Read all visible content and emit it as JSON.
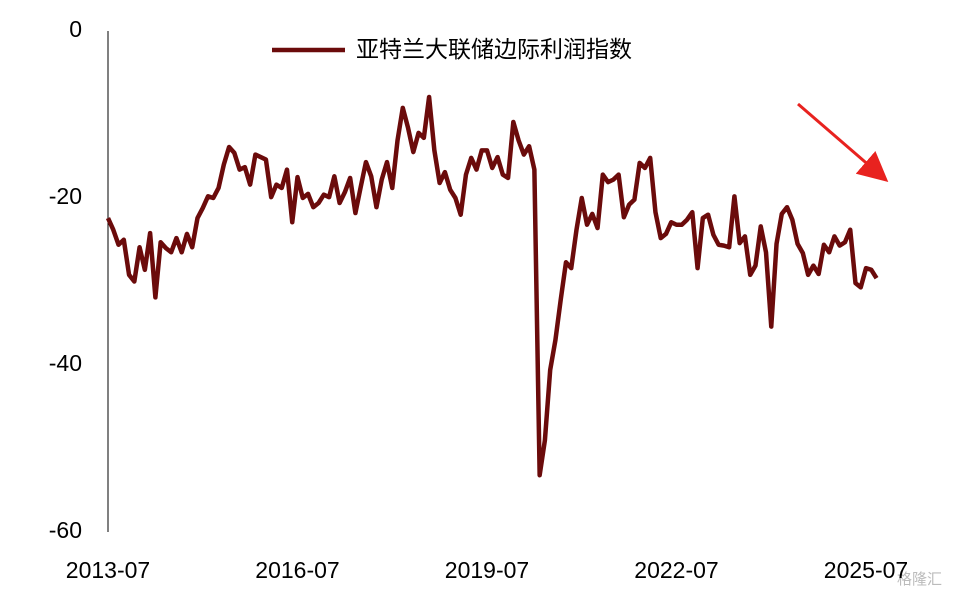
{
  "chart_data": {
    "type": "line",
    "legend": "top",
    "categories": [
      "2013-07",
      null,
      null,
      null,
      null,
      null,
      null,
      null,
      null,
      null,
      null,
      null,
      null,
      null,
      null,
      null,
      null,
      null,
      null,
      null,
      null,
      null,
      null,
      null,
      null,
      null,
      null,
      null,
      null,
      null,
      null,
      null,
      null,
      null,
      null,
      null,
      "2016-07",
      null,
      null,
      null,
      null,
      null,
      null,
      null,
      null,
      null,
      null,
      null,
      null,
      null,
      null,
      null,
      null,
      null,
      null,
      null,
      null,
      null,
      null,
      null,
      null,
      null,
      null,
      null,
      null,
      null,
      null,
      null,
      null,
      null,
      null,
      null,
      "2019-07",
      null,
      null,
      null,
      null,
      null,
      null,
      null,
      null,
      null,
      null,
      null,
      null,
      null,
      null,
      null,
      null,
      null,
      null,
      null,
      null,
      null,
      null,
      null,
      null,
      null,
      null,
      null,
      null,
      null,
      null,
      null,
      null,
      null,
      null,
      null,
      "2022-07",
      null,
      null,
      null,
      null,
      null,
      null,
      null,
      null,
      null,
      null,
      null,
      null,
      null,
      null,
      null,
      null,
      null,
      null,
      null,
      null,
      null,
      null,
      null,
      null,
      null,
      null,
      null,
      null,
      null,
      null,
      null,
      null,
      null,
      null,
      null,
      "2025-07",
      null,
      null
    ],
    "series": [
      {
        "name": "亚特兰大联储边际利润指数",
        "color": "#6b0b0b",
        "values": [
          -22.4,
          -23.8,
          -25.6,
          -25,
          -29.2,
          -30,
          -25.9,
          -28.6,
          -24.2,
          -31.9,
          -25.3,
          -26,
          -26.5,
          -24.8,
          -26.5,
          -24.3,
          -25.9,
          -22.4,
          -21.2,
          -19.8,
          -20,
          -18.8,
          -16,
          -13.9,
          -14.6,
          -16.6,
          -16.3,
          -18.4,
          -14.8,
          -15.1,
          -15.4,
          -19.9,
          -18.4,
          -18.8,
          -16.6,
          -22.9,
          -17.5,
          -20,
          -19.5,
          -21.1,
          -20.6,
          -19.6,
          -19.9,
          -17.4,
          -20.6,
          -19.3,
          -17.6,
          -21.8,
          -18.7,
          -15.7,
          -17.4,
          -21.1,
          -17.8,
          -15.7,
          -18.8,
          -13.1,
          -9.2,
          -11.6,
          -14.5,
          -12.2,
          -12.8,
          -7.9,
          -14.3,
          -18.2,
          -16.9,
          -19,
          -20,
          -22,
          -17.2,
          -15.2,
          -16.6,
          -14.3,
          -14.3,
          -16.4,
          -15.1,
          -17.2,
          -17.6,
          -10.9,
          -13.1,
          -14.8,
          -13.8,
          -16.6,
          -53.2,
          -49,
          -40.6,
          -37,
          -32.2,
          -27.7,
          -28.4,
          -23.8,
          -20,
          -23.2,
          -21.9,
          -23.6,
          -17.2,
          -18.1,
          -17.8,
          -17.2,
          -22.3,
          -20.8,
          -20.2,
          -15.8,
          -16.4,
          -15.2,
          -21.7,
          -24.8,
          -24.3,
          -22.9,
          -23.2,
          -23.2,
          -22.6,
          -21.7,
          -28.4,
          -22.4,
          -22,
          -24.4,
          -25.6,
          -25.7,
          -25.9,
          -19.8,
          -25.4,
          -24.6,
          -29.2,
          -28.1,
          -23.4,
          -26.5,
          -35.4,
          -25.5,
          -21.9,
          -21.1,
          -22.6,
          -25.5,
          -26.6,
          -29.2,
          -28.1,
          -29.1,
          -25.6,
          -26.5,
          -24.6,
          -25.7,
          -25.3,
          -23.8,
          -30.2,
          -30.7,
          -28.4,
          -28.6,
          -29.6
        ]
      }
    ],
    "ylim": [
      -60,
      0
    ],
    "yticks": [
      0,
      -20,
      -40,
      -60
    ],
    "grid": false,
    "watermark": "格隆汇"
  }
}
